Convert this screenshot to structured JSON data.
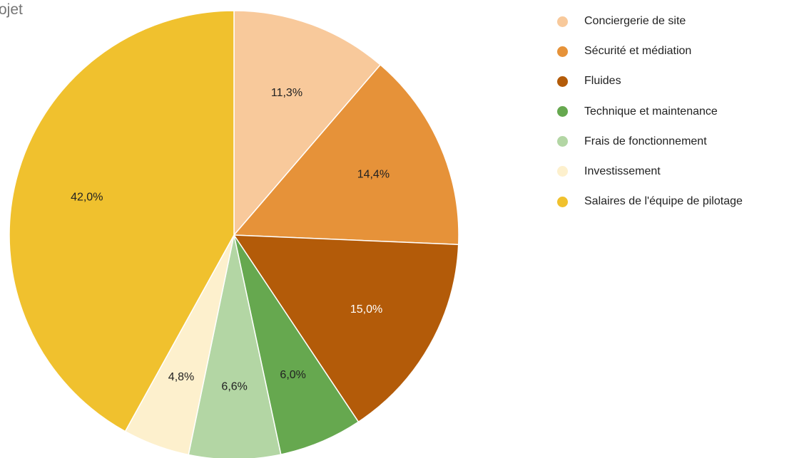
{
  "chart_data": {
    "type": "pie",
    "title": "ojet",
    "categories": [
      "Conciergerie de site",
      "Sécurité et médiation",
      "Fluides",
      "Technique et maintenance",
      "Frais de fonctionnement",
      "Investissement",
      "Salaires de l'équipe de pilotage"
    ],
    "values": [
      11.3,
      14.4,
      15.0,
      6.0,
      6.6,
      4.8,
      42.0
    ],
    "value_labels": [
      "11,3%",
      "14,4%",
      "15,0%",
      "6,0%",
      "6,6%",
      "4,8%",
      "42,0%"
    ],
    "colors": [
      "#f8c99b",
      "#e69239",
      "#b35b09",
      "#66a84f",
      "#b3d6a4",
      "#fdf0cd",
      "#f0c12e"
    ],
    "label_colors": [
      "#222222",
      "#222222",
      "#ffffff",
      "#222222",
      "#222222",
      "#222222",
      "#222222"
    ],
    "start_angle_deg": 0,
    "direction": "clockwise",
    "legend_position": "right"
  }
}
